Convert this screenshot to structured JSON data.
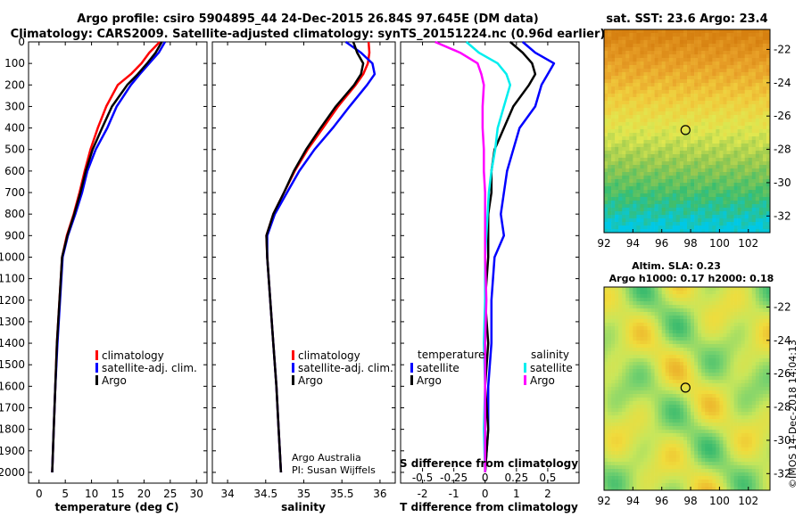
{
  "header": {
    "line1": "Argo profile: csiro 5904895_44 24-Dec-2015 26.84S 97.645E (DM data)",
    "line2": "Climatology: CARS2009. Satellite-adjusted climatology: synTS_20151224.nc (0.96d earlier)"
  },
  "colors": {
    "climatology": "#ff0000",
    "satellite": "#0000ff",
    "argo": "#000000",
    "sat_salinity": "#00eeee",
    "argo_salinity": "#ff00ff"
  },
  "depth_axis": {
    "min": 0,
    "max": 2050,
    "ticks": [
      0,
      100,
      200,
      300,
      400,
      500,
      600,
      700,
      800,
      900,
      1000,
      1100,
      1200,
      1300,
      1400,
      1500,
      1600,
      1700,
      1800,
      1900,
      2000
    ]
  },
  "legend": {
    "climatology": "climatology",
    "satellite": "satellite-adj. clim.",
    "argo": "Argo"
  },
  "diff_legend": {
    "temperature_title": "temperature",
    "salinity_title": "salinity",
    "satellite": "satellite",
    "argo": "Argo"
  },
  "credit": {
    "line1": "Argo Australia",
    "line2": "PI: Susan Wijffels"
  },
  "sst_title": "sat. SST: 23.6 Argo: 23.4",
  "sla_title1": "Altim. SLA: 0.23",
  "sla_title2": "Argo h1000: 0.17 h2000: 0.18",
  "timestamp": "©IMOS 14-Dec-2018 14:04:13",
  "map_axes": {
    "lon_ticks": [
      92,
      94,
      96,
      98,
      100,
      102
    ],
    "lat_ticks": [
      -22,
      -24,
      -26,
      -28,
      -30,
      -32
    ],
    "lon_range": [
      92,
      103.5
    ],
    "lat_range": [
      -33,
      -20.8
    ],
    "float_lon": 97.645,
    "float_lat": -26.84
  },
  "chart_data": [
    {
      "type": "line",
      "title": "",
      "xlabel": "temperature (deg C)",
      "ylabel": "",
      "xlim": [
        -2,
        32
      ],
      "ylim": [
        2050,
        0
      ],
      "xticks": [
        0,
        5,
        10,
        15,
        20,
        25,
        30
      ],
      "xtick_labels": [
        "0",
        "5",
        "10",
        "15",
        "20",
        "25",
        "30"
      ],
      "series": [
        {
          "name": "climatology",
          "color": "#ff0000",
          "x": [
            23.0,
            21.0,
            19.5,
            17.5,
            15.0,
            12.8,
            11.2,
            9.8,
            8.7,
            7.7,
            6.6,
            5.3,
            4.4,
            3.9,
            3.4,
            3.1,
            2.8,
            2.5
          ],
          "y": [
            0,
            50,
            100,
            150,
            200,
            300,
            400,
            500,
            600,
            700,
            800,
            900,
            1000,
            1200,
            1400,
            1600,
            1800,
            2000
          ]
        },
        {
          "name": "satellite-adj. clim.",
          "color": "#0000ff",
          "x": [
            24.0,
            22.8,
            21.0,
            19.2,
            17.5,
            14.8,
            13.0,
            10.8,
            9.2,
            8.2,
            6.9,
            5.5,
            4.5,
            4.0,
            3.5,
            3.1,
            2.8,
            2.5
          ],
          "y": [
            0,
            50,
            100,
            150,
            200,
            300,
            400,
            500,
            600,
            700,
            800,
            900,
            1000,
            1200,
            1400,
            1600,
            1800,
            2000
          ]
        },
        {
          "name": "Argo",
          "color": "#000000",
          "x": [
            23.4,
            22.2,
            20.6,
            18.8,
            16.8,
            13.9,
            12.0,
            10.2,
            8.9,
            7.9,
            6.7,
            5.4,
            4.4,
            3.9,
            3.4,
            3.1,
            2.8,
            2.5
          ],
          "y": [
            0,
            50,
            100,
            150,
            200,
            300,
            400,
            500,
            600,
            700,
            800,
            900,
            1000,
            1200,
            1400,
            1600,
            1800,
            2000
          ]
        }
      ]
    },
    {
      "type": "line",
      "title": "",
      "xlabel": "salinity",
      "ylabel": "",
      "xlim": [
        33.8,
        36.2
      ],
      "ylim": [
        2050,
        0
      ],
      "xticks": [
        34,
        34.5,
        35,
        35.5,
        36
      ],
      "xtick_labels": [
        "34",
        "34.5",
        "35",
        "35.5",
        "36"
      ],
      "series": [
        {
          "name": "climatology",
          "color": "#ff0000",
          "x": [
            35.85,
            35.86,
            35.84,
            35.78,
            35.68,
            35.45,
            35.25,
            35.05,
            34.88,
            34.74,
            34.6,
            34.51,
            34.52,
            34.56,
            34.6,
            34.64,
            34.67,
            34.7
          ],
          "y": [
            0,
            50,
            100,
            150,
            200,
            300,
            400,
            500,
            600,
            700,
            800,
            900,
            1000,
            1200,
            1400,
            1600,
            1800,
            2000
          ]
        },
        {
          "name": "satellite-adj. clim.",
          "color": "#0000ff",
          "x": [
            35.55,
            35.75,
            35.9,
            35.93,
            35.83,
            35.6,
            35.38,
            35.14,
            34.94,
            34.78,
            34.62,
            34.52,
            34.52,
            34.56,
            34.6,
            34.64,
            34.67,
            34.7
          ],
          "y": [
            0,
            50,
            100,
            150,
            200,
            300,
            400,
            500,
            600,
            700,
            800,
            900,
            1000,
            1200,
            1400,
            1600,
            1800,
            2000
          ]
        },
        {
          "name": "Argo",
          "color": "#000000",
          "x": [
            35.65,
            35.7,
            35.78,
            35.75,
            35.66,
            35.42,
            35.22,
            35.03,
            34.87,
            34.74,
            34.6,
            34.51,
            34.52,
            34.56,
            34.6,
            34.64,
            34.67,
            34.7
          ],
          "y": [
            0,
            50,
            100,
            150,
            200,
            300,
            400,
            500,
            600,
            700,
            800,
            900,
            1000,
            1200,
            1400,
            1600,
            1800,
            2000
          ]
        }
      ]
    },
    {
      "type": "line",
      "title": "",
      "xlabel": "T difference from climatology",
      "ylabel": "",
      "xlim": [
        -2.7,
        3.0
      ],
      "ylim": [
        2050,
        0
      ],
      "xticks": [
        -2,
        -1,
        0,
        1,
        2
      ],
      "xtick_labels": [
        "-2",
        "-1",
        "0",
        "1",
        "2"
      ],
      "top_axis": {
        "title": "S difference from climatology",
        "xlim": [
          -0.675,
          0.75
        ],
        "ticks": [
          -0.5,
          -0.25,
          0,
          0.25,
          0.5
        ],
        "tick_labels": [
          "-0.5",
          "-0.25",
          "0",
          "0.25",
          "0.5"
        ]
      },
      "series": [
        {
          "name": "temperature satellite",
          "color": "#0000ff",
          "axis": "T",
          "x": [
            1.2,
            1.6,
            2.2,
            2.0,
            1.8,
            1.6,
            1.1,
            0.9,
            0.7,
            0.6,
            0.5,
            0.6,
            0.3,
            0.2,
            0.2,
            0.1,
            0.1,
            0.0
          ],
          "y": [
            0,
            50,
            100,
            150,
            200,
            300,
            400,
            500,
            600,
            700,
            800,
            900,
            1000,
            1200,
            1400,
            1600,
            1800,
            2000
          ]
        },
        {
          "name": "temperature Argo",
          "color": "#000000",
          "axis": "T",
          "x": [
            0.8,
            1.2,
            1.5,
            1.6,
            1.4,
            0.9,
            0.6,
            0.3,
            0.2,
            0.2,
            0.1,
            0.1,
            0.1,
            0.0,
            0.1,
            0.0,
            0.1,
            0.0
          ],
          "y": [
            0,
            50,
            100,
            150,
            200,
            300,
            400,
            500,
            600,
            700,
            800,
            900,
            1000,
            1200,
            1400,
            1600,
            1800,
            2000
          ]
        },
        {
          "name": "salinity satellite",
          "color": "#00eeee",
          "axis": "S",
          "x": [
            -0.15,
            -0.05,
            0.1,
            0.17,
            0.2,
            0.15,
            0.1,
            0.08,
            0.05,
            0.03,
            0.02,
            0.01,
            0.0,
            0.0,
            -0.01,
            0.0,
            -0.01,
            0.0
          ],
          "y": [
            0,
            50,
            100,
            150,
            200,
            300,
            400,
            500,
            600,
            700,
            800,
            900,
            1000,
            1200,
            1400,
            1600,
            1800,
            2000
          ]
        },
        {
          "name": "salinity Argo",
          "color": "#ff00ff",
          "axis": "S",
          "x": [
            -0.4,
            -0.2,
            -0.06,
            -0.03,
            -0.01,
            -0.02,
            -0.02,
            -0.01,
            -0.01,
            0.0,
            0.0,
            0.0,
            0.0,
            0.01,
            0.0,
            0.0,
            0.0,
            0.0
          ],
          "y": [
            0,
            50,
            100,
            150,
            200,
            300,
            400,
            500,
            600,
            700,
            800,
            900,
            1000,
            1200,
            1400,
            1600,
            1800,
            2000
          ]
        }
      ]
    },
    {
      "type": "heatmap",
      "title": "sat. SST: 23.6 Argo: 23.4",
      "xlabel": "",
      "ylabel": "",
      "x_ticks": [
        92,
        94,
        96,
        98,
        100,
        102
      ],
      "y_ticks": [
        -22,
        -24,
        -26,
        -28,
        -30,
        -32
      ],
      "pattern": "warm orange in the north grading through yellow to green and cyan in the south"
    },
    {
      "type": "heatmap",
      "title": "Altim. SLA: 0.23",
      "xlabel": "",
      "ylabel": "",
      "x_ticks": [
        92,
        94,
        96,
        98,
        100,
        102
      ],
      "y_ticks": [
        -22,
        -24,
        -26,
        -28,
        -30,
        -32
      ],
      "pattern": "mottled green and yellow field with orange patches"
    }
  ]
}
